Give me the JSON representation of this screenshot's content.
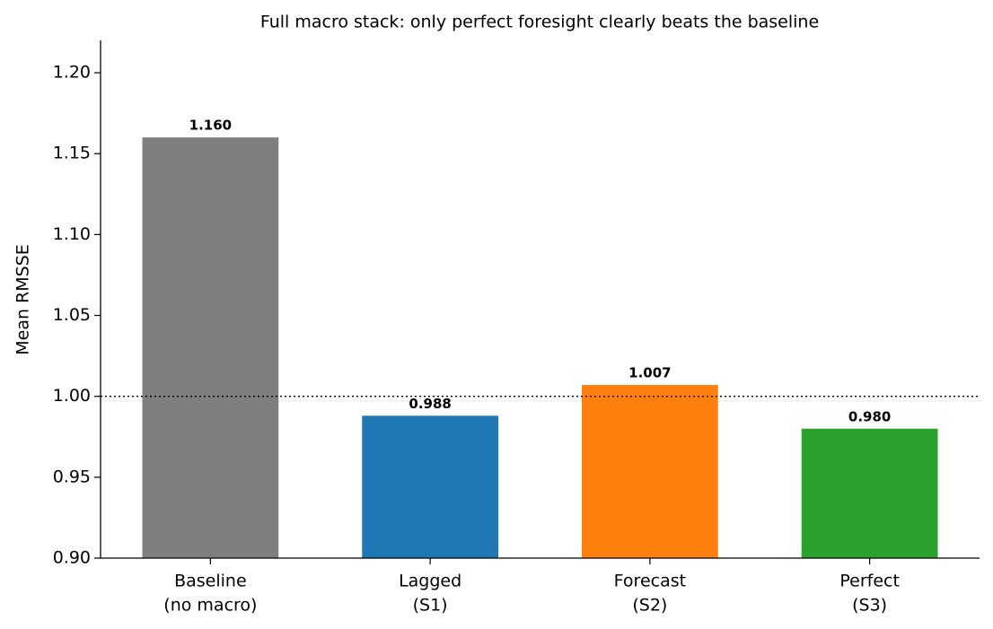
{
  "chart_data": {
    "type": "bar",
    "title": "Full macro stack: only perfect foresight clearly beats the baseline",
    "y_label": "Mean RMSSE",
    "categories": [
      [
        "Baseline",
        "(no macro)"
      ],
      [
        "Lagged",
        "(S1)"
      ],
      [
        "Forecast",
        "(S2)"
      ],
      [
        "Perfect",
        "(S3)"
      ]
    ],
    "values": [
      1.16,
      0.988,
      1.007,
      0.98
    ],
    "value_labels": [
      "1.160",
      "0.988",
      "1.007",
      "0.980"
    ],
    "colors": [
      "#7f7f7f",
      "#1f77b4",
      "#ff7f0e",
      "#2ca02c"
    ],
    "ylim": [
      0.9,
      1.22
    ],
    "yticks": [
      {
        "value": 0.9,
        "label": "0.90"
      },
      0.95,
      {
        "value": 1.0,
        "label": "1.00"
      },
      1.05,
      {
        "value": 1.1,
        "label": "1.10"
      },
      1.15,
      {
        "value": 1.2,
        "label": "1.20"
      }
    ],
    "reference_line": 1.0,
    "grid": false
  }
}
